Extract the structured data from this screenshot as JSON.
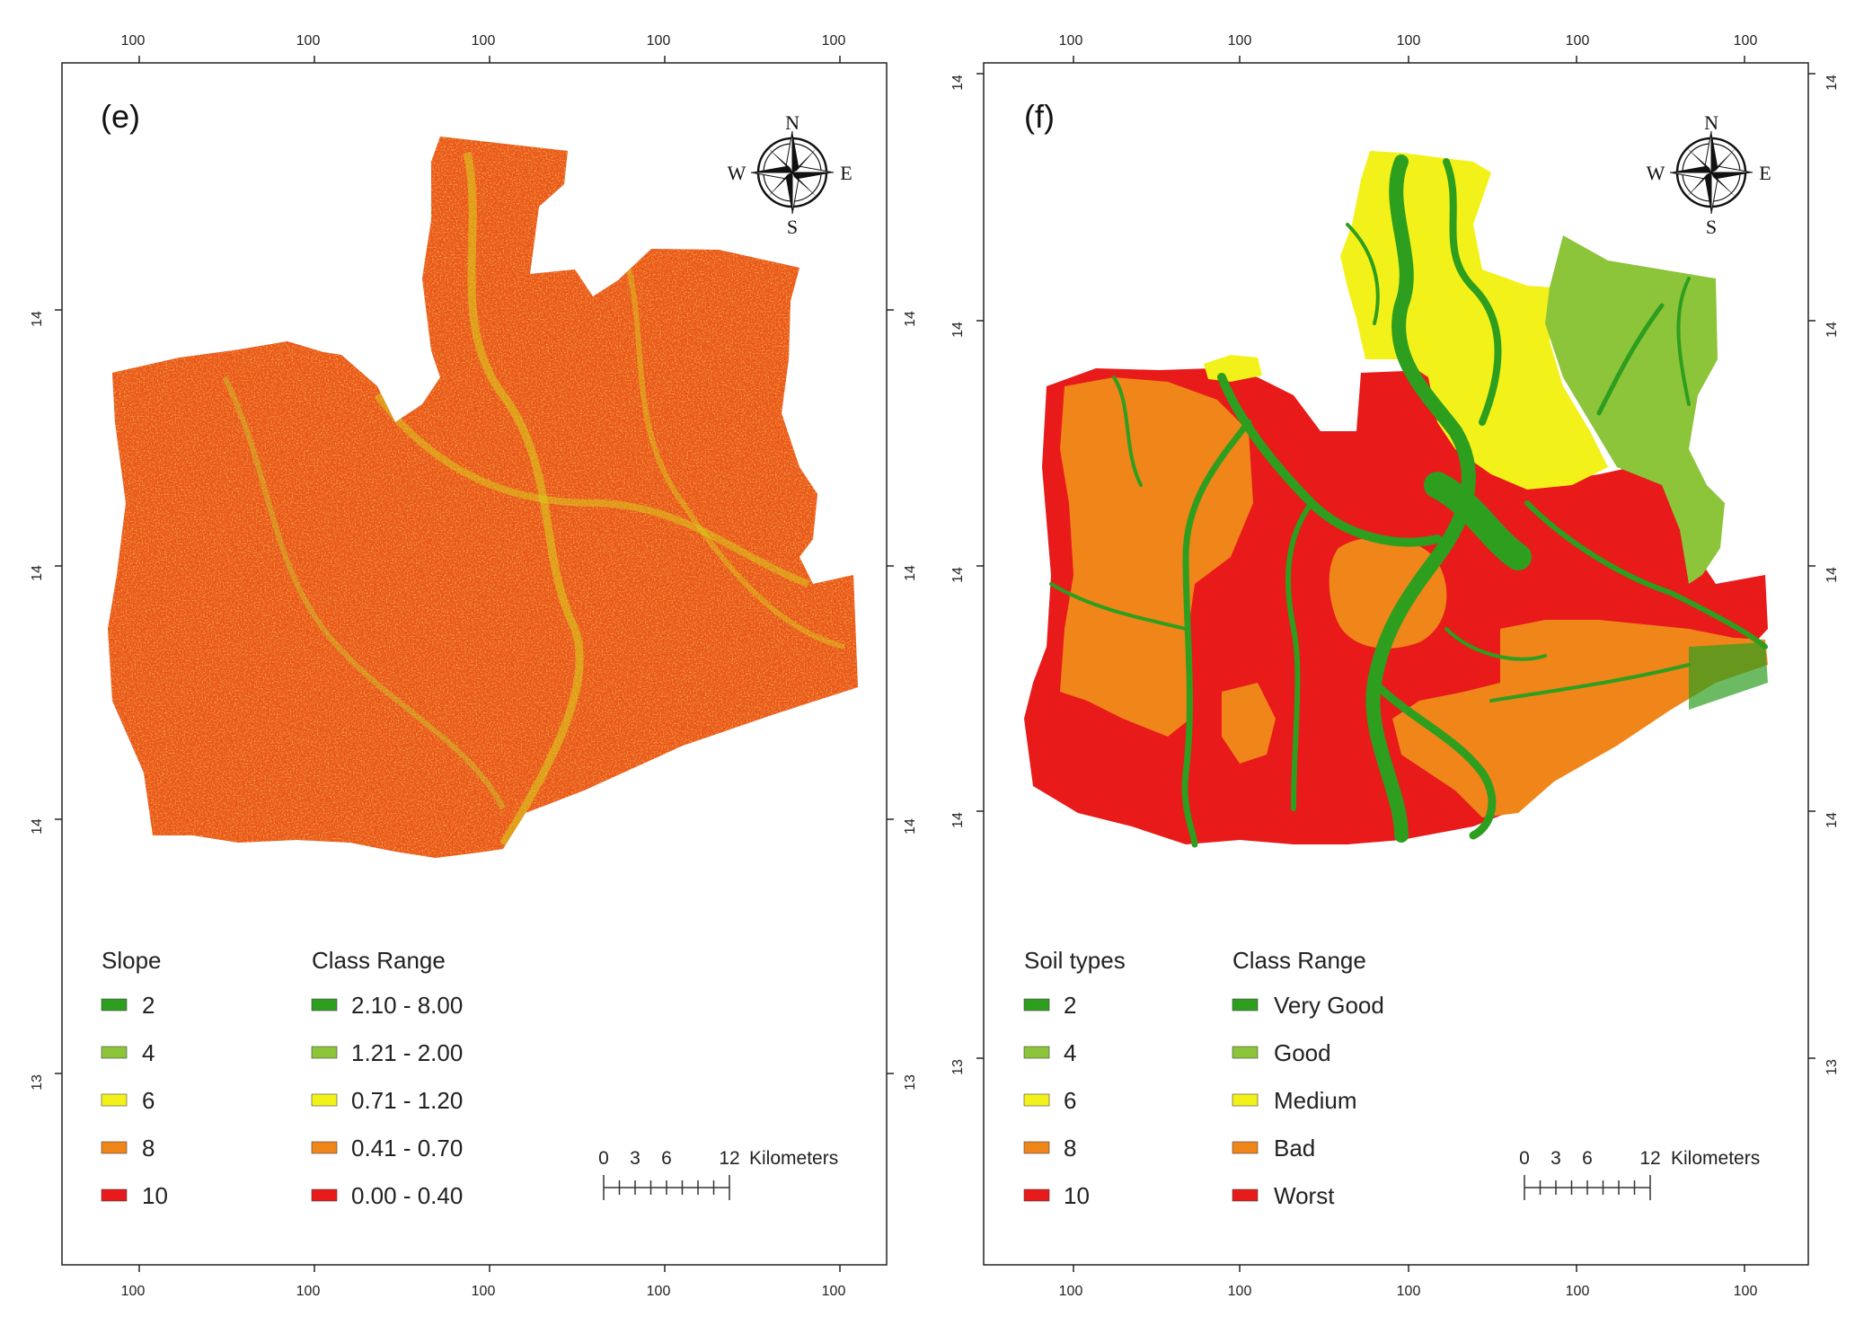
{
  "colors": {
    "dark_green": "#2e9e1f",
    "light_green": "#8cc43a",
    "yellow": "#f2f21a",
    "orange": "#f0851a",
    "red": "#e81a1a"
  },
  "panels": [
    {
      "id": "e",
      "label": "(e)",
      "top_ticks": [
        "100",
        "100",
        "100",
        "100",
        "100"
      ],
      "bottom_ticks": [
        "100",
        "100",
        "100",
        "100",
        "100"
      ],
      "left_ticks": [
        "14",
        "14",
        "14",
        "13"
      ],
      "right_ticks": [
        "14",
        "14",
        "14",
        "13"
      ],
      "compass": {
        "n": "N",
        "s": "S",
        "e": "E",
        "w": "W"
      },
      "legend": {
        "title1": "Slope",
        "title2": "Class Range",
        "items": [
          {
            "value": "2",
            "range": "2.10 - 8.00",
            "color": "#2e9e1f"
          },
          {
            "value": "4",
            "range": "1.21 - 2.00",
            "color": "#8cc43a"
          },
          {
            "value": "6",
            "range": "0.71 - 1.20",
            "color": "#f2f21a"
          },
          {
            "value": "8",
            "range": "0.41 - 0.70",
            "color": "#f0851a"
          },
          {
            "value": "10",
            "range": "0.00 - 0.40",
            "color": "#e81a1a"
          }
        ]
      },
      "scale": {
        "labels": [
          "0",
          "3",
          "6",
          "12"
        ],
        "unit": "Kilometers"
      }
    },
    {
      "id": "f",
      "label": "(f)",
      "top_ticks": [
        "100",
        "100",
        "100",
        "100",
        "100"
      ],
      "bottom_ticks": [
        "100",
        "100",
        "100",
        "100",
        "100"
      ],
      "left_ticks": [
        "14",
        "14",
        "14",
        "14",
        "13"
      ],
      "right_ticks": [
        "14",
        "14",
        "14",
        "14",
        "13"
      ],
      "compass": {
        "n": "N",
        "s": "S",
        "e": "E",
        "w": "W"
      },
      "legend": {
        "title1": "Soil types",
        "title2": "Class Range",
        "items": [
          {
            "value": "2",
            "range": "Very Good",
            "color": "#2e9e1f"
          },
          {
            "value": "4",
            "range": "Good",
            "color": "#8cc43a"
          },
          {
            "value": "6",
            "range": "Medium",
            "color": "#f2f21a"
          },
          {
            "value": "8",
            "range": "Bad",
            "color": "#f0851a"
          },
          {
            "value": "10",
            "range": "Worst",
            "color": "#e81a1a"
          }
        ]
      },
      "scale": {
        "labels": [
          "0",
          "3",
          "6",
          "12"
        ],
        "unit": "Kilometers"
      }
    }
  ]
}
